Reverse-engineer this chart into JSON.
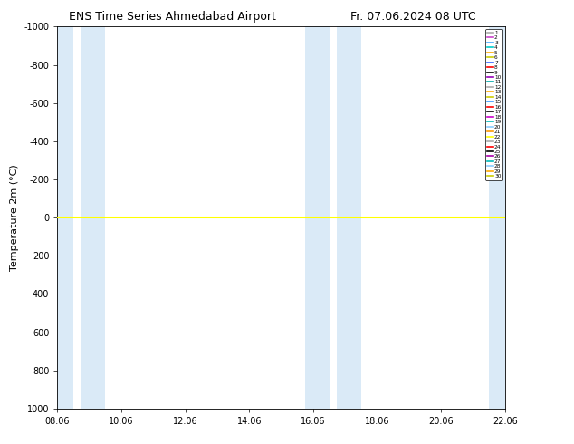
{
  "title_left": "ENS Time Series Ahmedabad Airport",
  "title_right": "Fr. 07.06.2024 08 UTC",
  "ylabel": "Temperature 2m (°C)",
  "xtick_labels": [
    "08.06",
    "10.06",
    "12.06",
    "14.06",
    "16.06",
    "18.06",
    "20.06",
    "22.06"
  ],
  "xtick_positions": [
    0,
    2,
    4,
    6,
    8,
    10,
    12,
    14
  ],
  "ylim_top": -1000,
  "ylim_bottom": 1000,
  "ytick_positions": [
    -1000,
    -800,
    -600,
    -400,
    -200,
    0,
    200,
    400,
    600,
    800,
    1000
  ],
  "background_color": "#ffffff",
  "shaded_bands": [
    {
      "x_start": 0.0,
      "x_end": 0.5,
      "color": "#daeaf7"
    },
    {
      "x_start": 0.75,
      "x_end": 1.5,
      "color": "#daeaf7"
    },
    {
      "x_start": 7.75,
      "x_end": 8.5,
      "color": "#daeaf7"
    },
    {
      "x_start": 8.75,
      "x_end": 9.5,
      "color": "#daeaf7"
    },
    {
      "x_start": 13.5,
      "x_end": 14.0,
      "color": "#daeaf7"
    }
  ],
  "member_colors": [
    "#aaaaaa",
    "#cc44cc",
    "#44aaff",
    "#00cccc",
    "#ffaa00",
    "#cccc00",
    "#3366ff",
    "#ff0000",
    "#000000",
    "#9900bb",
    "#00aaaa",
    "#aaaaaa",
    "#ffaa00",
    "#cccc00",
    "#3399ff",
    "#ff0000",
    "#000000",
    "#cc00cc",
    "#00bbbb",
    "#88ccff",
    "#ff9900",
    "#ffff00",
    "#aaaaaa",
    "#ff0000",
    "#000000",
    "#aa00aa",
    "#00bbbb",
    "#88ccff",
    "#ffaa00",
    "#cccc00"
  ],
  "zero_line_color": "#ffff00",
  "zero_line_lw": 1.5,
  "title_fontsize": 9,
  "tick_fontsize": 7,
  "ylabel_fontsize": 8
}
